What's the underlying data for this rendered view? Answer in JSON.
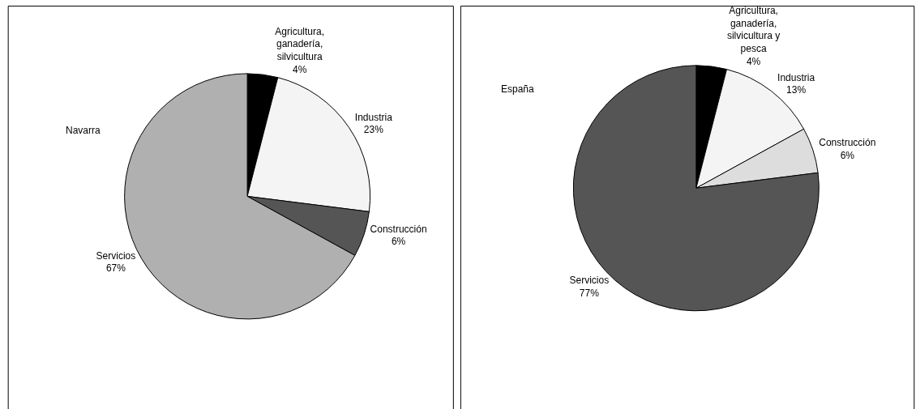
{
  "chart_data": [
    {
      "type": "pie",
      "title": "Navarra",
      "categories": [
        "Agricultura, ganadería, silvicultura",
        "Industria",
        "Construcción",
        "Servicios"
      ],
      "values": [
        4,
        23,
        6,
        67
      ],
      "value_labels": [
        "4%",
        "23%",
        "6%",
        "67%"
      ],
      "colors": [
        "#000000",
        "#f4f4f4",
        "#555555",
        "#b0b0b0"
      ]
    },
    {
      "type": "pie",
      "title": "España",
      "categories": [
        "Agricultura, ganadería, silvicultura y pesca",
        "Industria",
        "Construcción",
        "Servicios"
      ],
      "values": [
        4,
        13,
        6,
        77
      ],
      "value_labels": [
        "4%",
        "13%",
        "6%",
        "77%"
      ],
      "colors": [
        "#000000",
        "#f4f4f4",
        "#dddddd",
        "#555555"
      ]
    }
  ]
}
